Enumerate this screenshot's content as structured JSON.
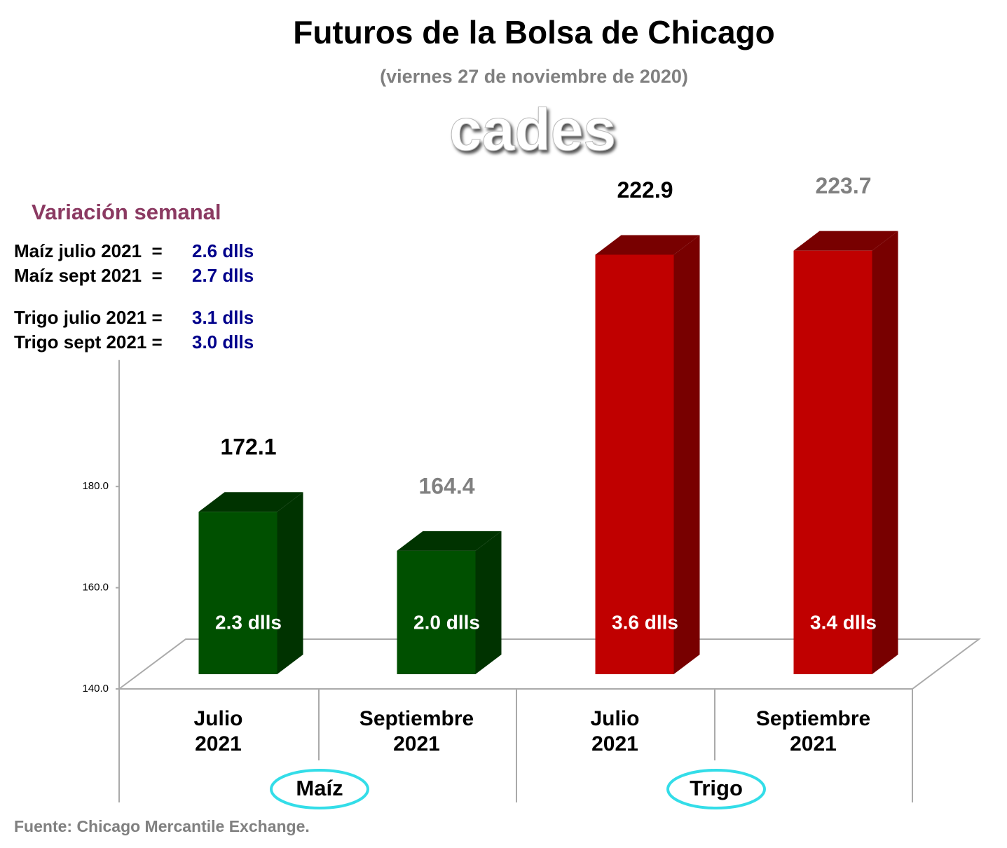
{
  "chart_data": {
    "type": "bar3d",
    "title": "Futuros de la Bolsa de Chicago",
    "subtitle": "(viernes 27 de noviembre de 2020)",
    "watermark": "cades",
    "categories": [
      "Julio 2021",
      "Septiembre 2021",
      "Julio 2021",
      "Septiembre 2021"
    ],
    "groups": [
      "Maíz",
      "Trigo"
    ],
    "values": [
      172.1,
      164.4,
      222.9,
      223.7
    ],
    "colors": [
      "#005000",
      "#005000",
      "#c00000",
      "#c00000"
    ],
    "side_colors": [
      "#003300",
      "#003300",
      "#780000",
      "#780000"
    ],
    "value_label_colors": [
      "#000000",
      "#808080",
      "#000000",
      "#808080"
    ],
    "bar_labels": [
      "2.3 dlls",
      "2.0 dlls",
      "3.6 dlls",
      "3.4 dlls"
    ],
    "ylim": [
      140,
      205
    ],
    "yticks": [
      {
        "value": 140,
        "label": "140.0"
      },
      {
        "value": 160,
        "label": "160.0"
      },
      {
        "value": 180,
        "label": "180.0"
      }
    ],
    "weekly_variation": {
      "title": "Variación semanal",
      "items": [
        {
          "label": "Maíz julio 2021  =",
          "value": "2.6 dlls"
        },
        {
          "label": "Maíz sept 2021  =",
          "value": "2.7 dlls"
        },
        {
          "label": "Trigo julio 2021 =",
          "value": "3.1 dlls"
        },
        {
          "label": "Trigo sept 2021 =",
          "value": "3.0 dlls"
        }
      ]
    },
    "source": "Fuente: Chicago Mercantile Exchange."
  }
}
